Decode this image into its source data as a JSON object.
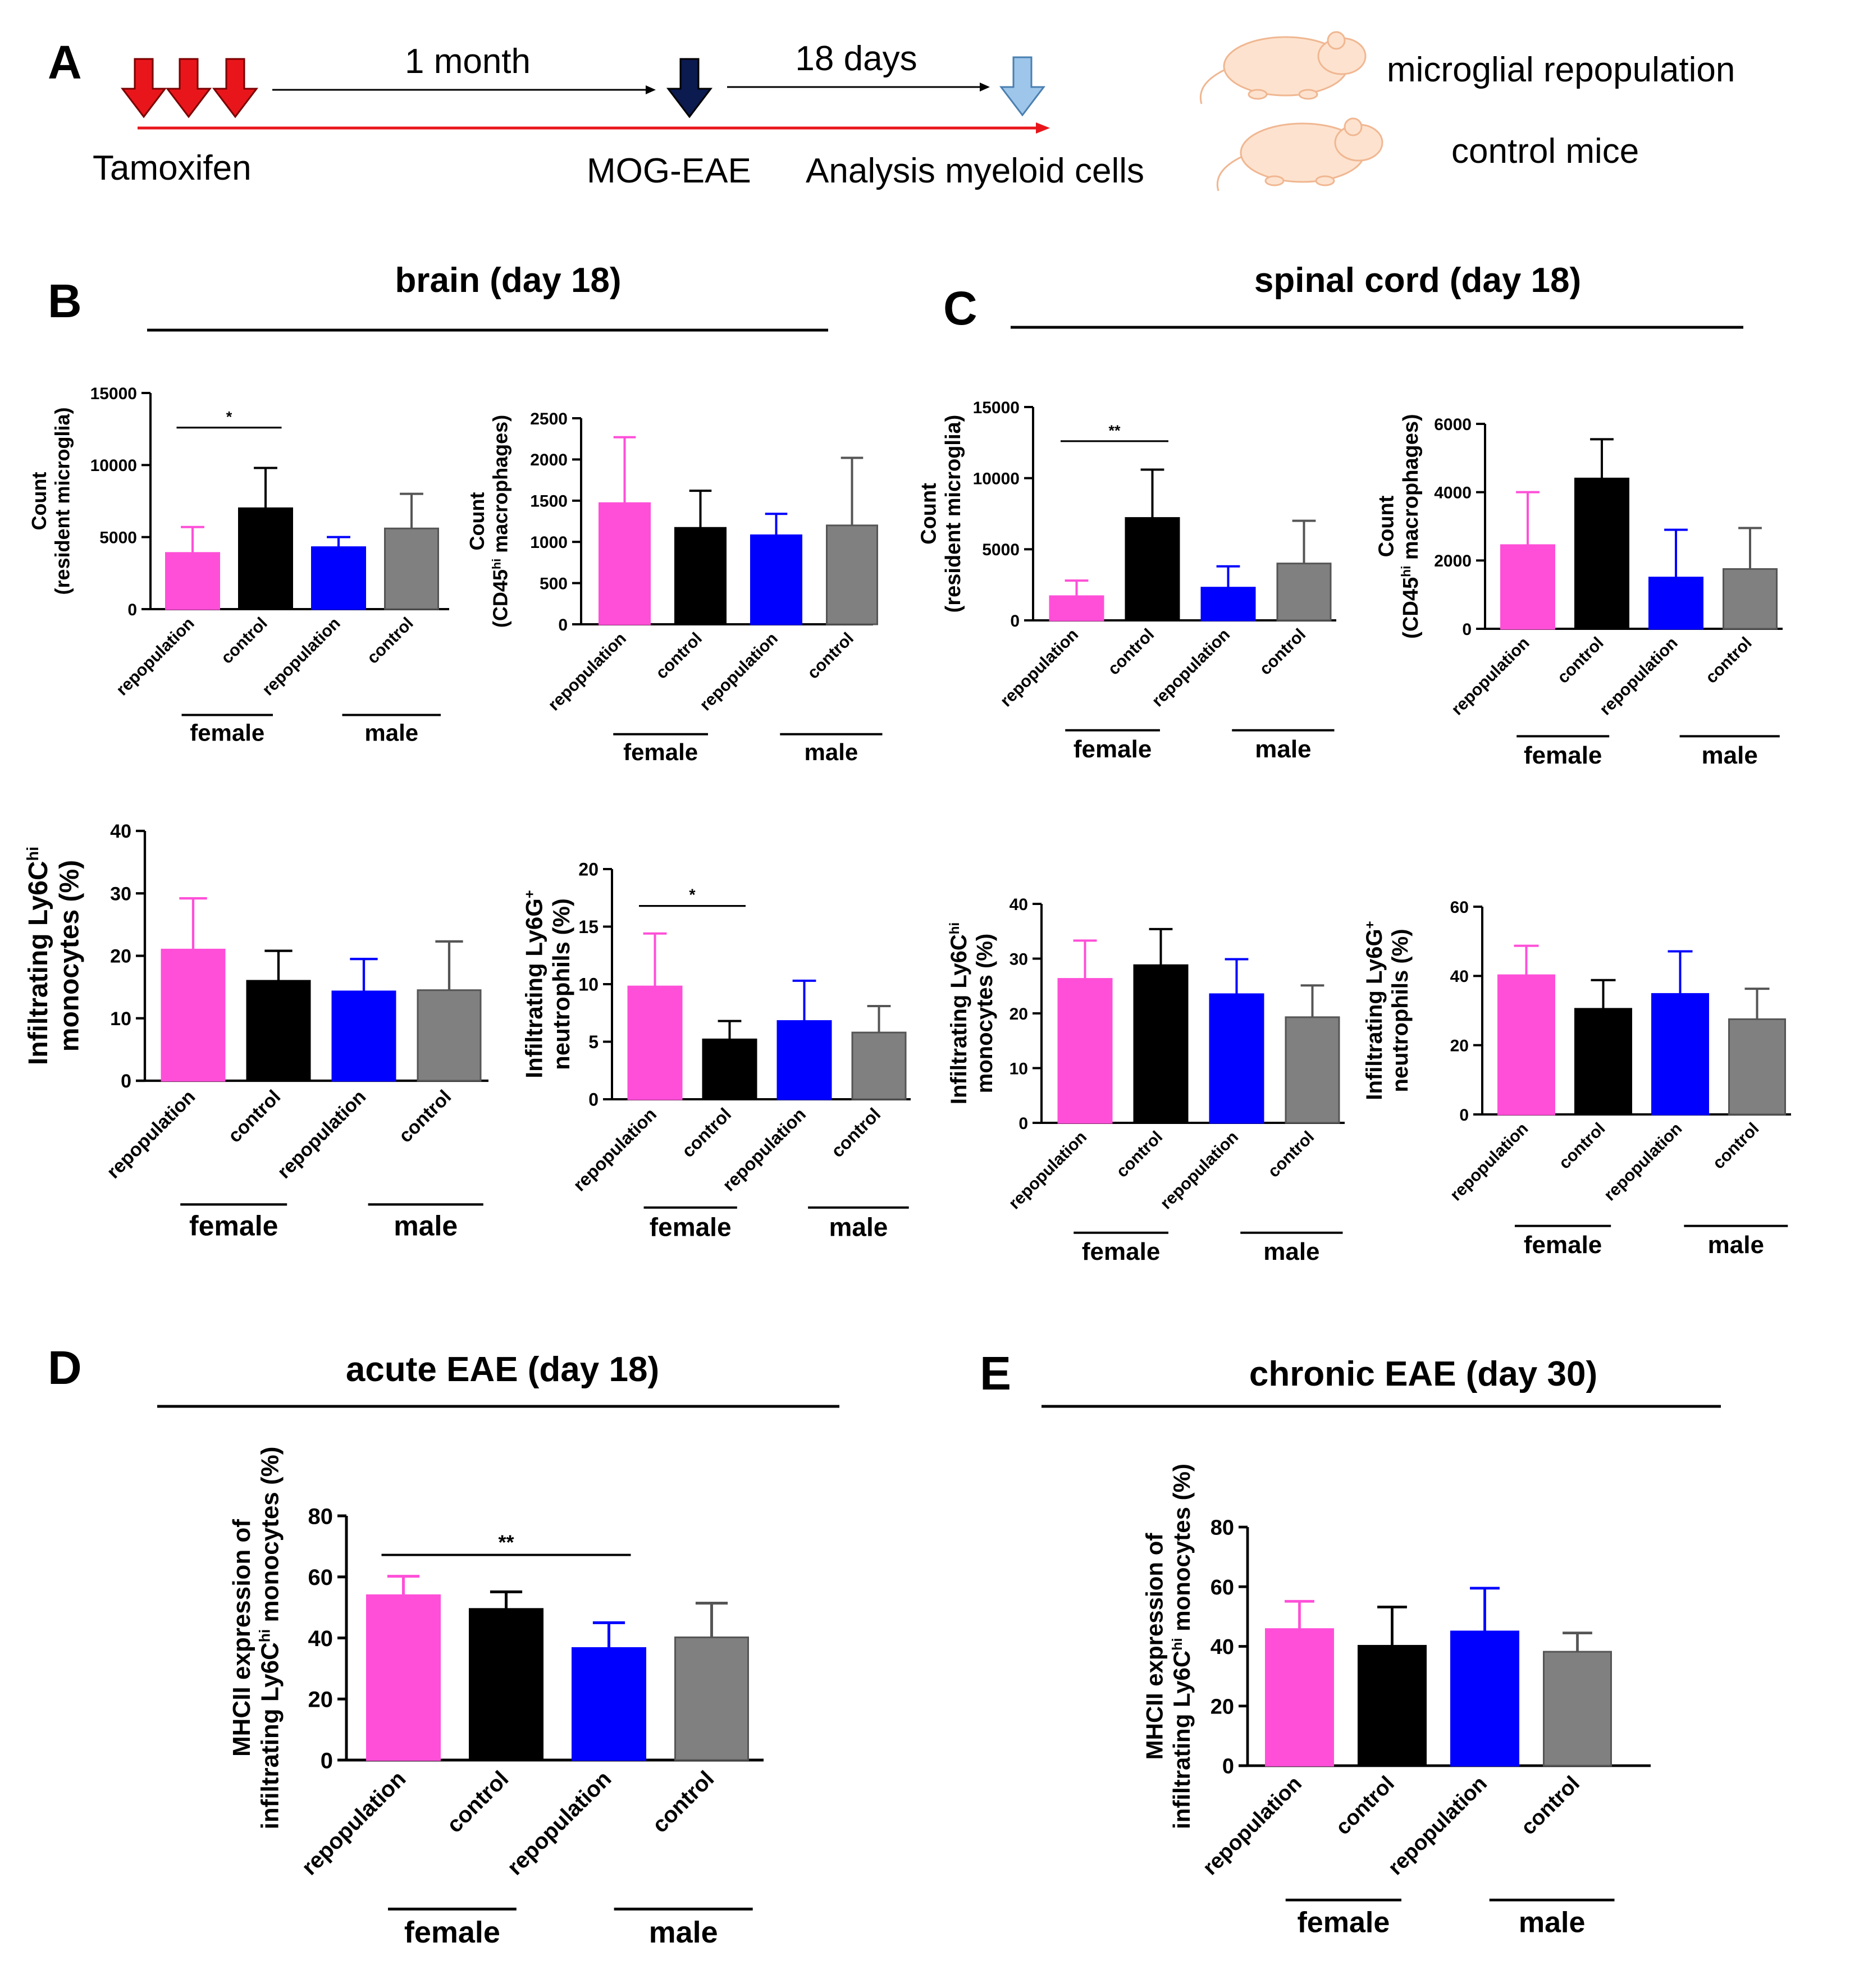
{
  "panel_labels": {
    "a": "A",
    "b": "B",
    "c": "C",
    "d": "D",
    "e": "E"
  },
  "timeline": {
    "tamoxifen": "Tamoxifen",
    "one_month": "1 month",
    "eighteen_days": "18 days",
    "mog_eae": "MOG-EAE",
    "analysis": "Analysis myeloid cells",
    "legend_repop": "microglial repopulation",
    "legend_control": "control mice"
  },
  "section_titles": {
    "b": "brain (day 18)",
    "c": "spinal cord (day 18)",
    "d": "acute EAE (day 18)",
    "e": "chronic EAE (day 30)"
  },
  "groups": {
    "female": "female",
    "male": "male"
  },
  "colors": {
    "repop_female": "#ff4fd8",
    "control_female": "#000000",
    "repop_male": "#0000ff",
    "control_male": "#808080"
  },
  "chart_data": [
    {
      "id": "b1",
      "type": "bar",
      "categories": [
        "repopulation",
        "control",
        "repopulation",
        "control"
      ],
      "values": [
        3900,
        7000,
        4300,
        5600
      ],
      "errors": [
        1800,
        2800,
        700,
        2400
      ],
      "ylabel": [
        "Count",
        "(resident microglia)"
      ],
      "ylim": [
        0,
        15000
      ],
      "yticks": [
        0,
        5000,
        10000,
        15000
      ],
      "significance": [
        {
          "from": 0,
          "to": 1,
          "label": "*"
        }
      ]
    },
    {
      "id": "b2",
      "type": "bar",
      "categories": [
        "repopulation",
        "control",
        "repopulation",
        "control"
      ],
      "values": [
        1470,
        1170,
        1080,
        1200
      ],
      "errors": [
        800,
        450,
        260,
        820
      ],
      "ylabel": [
        "Count",
        "(CD45",
        "hi",
        " macrophages)"
      ],
      "ylim": [
        0,
        2500
      ],
      "yticks": [
        0,
        500,
        1000,
        1500,
        2000,
        2500
      ],
      "significance": []
    },
    {
      "id": "b3",
      "type": "bar",
      "categories": [
        "repopulation",
        "control",
        "repopulation",
        "control"
      ],
      "values": [
        21,
        16,
        14.3,
        14.5
      ],
      "errors": [
        8.2,
        4.8,
        5.2,
        7.8
      ],
      "ylabel": [
        "Infiltrating Ly6C",
        "hi",
        "monocytes (%)"
      ],
      "ylim": [
        0,
        40
      ],
      "yticks": [
        0,
        10,
        20,
        30,
        40
      ],
      "significance": []
    },
    {
      "id": "b4",
      "type": "bar",
      "categories": [
        "repopulation",
        "control",
        "repopulation",
        "control"
      ],
      "values": [
        9.8,
        5.2,
        6.8,
        5.8
      ],
      "errors": [
        4.6,
        1.6,
        3.5,
        2.3
      ],
      "ylabel": [
        "Infiltrating Ly6G",
        "+",
        "neutrophils (%)"
      ],
      "ylim": [
        0,
        20
      ],
      "yticks": [
        0,
        5,
        10,
        15,
        20
      ],
      "significance": [
        {
          "from": 0,
          "to": 1,
          "label": "*"
        }
      ]
    },
    {
      "id": "c1",
      "type": "bar",
      "categories": [
        "repopulation",
        "control",
        "repopulation",
        "control"
      ],
      "values": [
        1700,
        7200,
        2300,
        4000
      ],
      "errors": [
        1100,
        3400,
        1500,
        3000
      ],
      "ylabel": [
        "Count",
        "(resident microglia)"
      ],
      "ylim": [
        0,
        15000
      ],
      "yticks": [
        0,
        5000,
        10000,
        15000
      ],
      "significance": [
        {
          "from": 0,
          "to": 1,
          "label": "**"
        }
      ]
    },
    {
      "id": "c2",
      "type": "bar",
      "categories": [
        "repopulation",
        "control",
        "repopulation",
        "control"
      ],
      "values": [
        2450,
        4400,
        1500,
        1750
      ],
      "errors": [
        1550,
        1150,
        1400,
        1200
      ],
      "ylabel": [
        "Count",
        "(CD45",
        "hi",
        " macrophages)"
      ],
      "ylim": [
        0,
        6000
      ],
      "yticks": [
        0,
        2000,
        4000,
        6000
      ],
      "significance": []
    },
    {
      "id": "c3",
      "type": "bar",
      "categories": [
        "repopulation",
        "control",
        "repopulation",
        "control"
      ],
      "values": [
        26.3,
        28.8,
        23.5,
        19.3
      ],
      "errors": [
        7,
        6.6,
        6.4,
        5.8
      ],
      "ylabel": [
        "Infiltrating Ly6C",
        "hi",
        "monocytes (%)"
      ],
      "ylim": [
        0,
        40
      ],
      "yticks": [
        0,
        10,
        20,
        30,
        40
      ],
      "significance": []
    },
    {
      "id": "c4",
      "type": "bar",
      "categories": [
        "repopulation",
        "control",
        "repopulation",
        "control"
      ],
      "values": [
        40.2,
        30.5,
        34.8,
        27.5
      ],
      "errors": [
        8.5,
        8.3,
        12.3,
        8.8
      ],
      "ylabel": [
        "Infiltrating Ly6G",
        "+",
        "neutrophils (%)"
      ],
      "ylim": [
        0,
        60
      ],
      "yticks": [
        0,
        20,
        40,
        60
      ],
      "significance": []
    },
    {
      "id": "d",
      "type": "bar",
      "categories": [
        "repopulation",
        "control",
        "repopulation",
        "control"
      ],
      "values": [
        54,
        49.5,
        36.7,
        40.2
      ],
      "errors": [
        6.2,
        5.6,
        8.3,
        11.2
      ],
      "ylabel": [
        "MHCII expression of",
        "infiltrating Ly6C",
        "hi",
        " monocytes (%)"
      ],
      "ylim": [
        0,
        80
      ],
      "yticks": [
        0,
        20,
        40,
        60,
        80
      ],
      "significance": [
        {
          "from": 0,
          "to": 2,
          "label": "**"
        }
      ]
    },
    {
      "id": "e",
      "type": "bar",
      "categories": [
        "repopulation",
        "control",
        "repopulation",
        "control"
      ],
      "values": [
        45.8,
        40.2,
        45,
        38.2
      ],
      "errors": [
        9.3,
        13,
        14.5,
        6.3
      ],
      "ylabel": [
        "MHCII expression of",
        "infiltrating Ly6C",
        "hi",
        " monocytes (%)"
      ],
      "ylim": [
        0,
        80
      ],
      "yticks": [
        0,
        20,
        40,
        60,
        80
      ],
      "significance": []
    }
  ]
}
